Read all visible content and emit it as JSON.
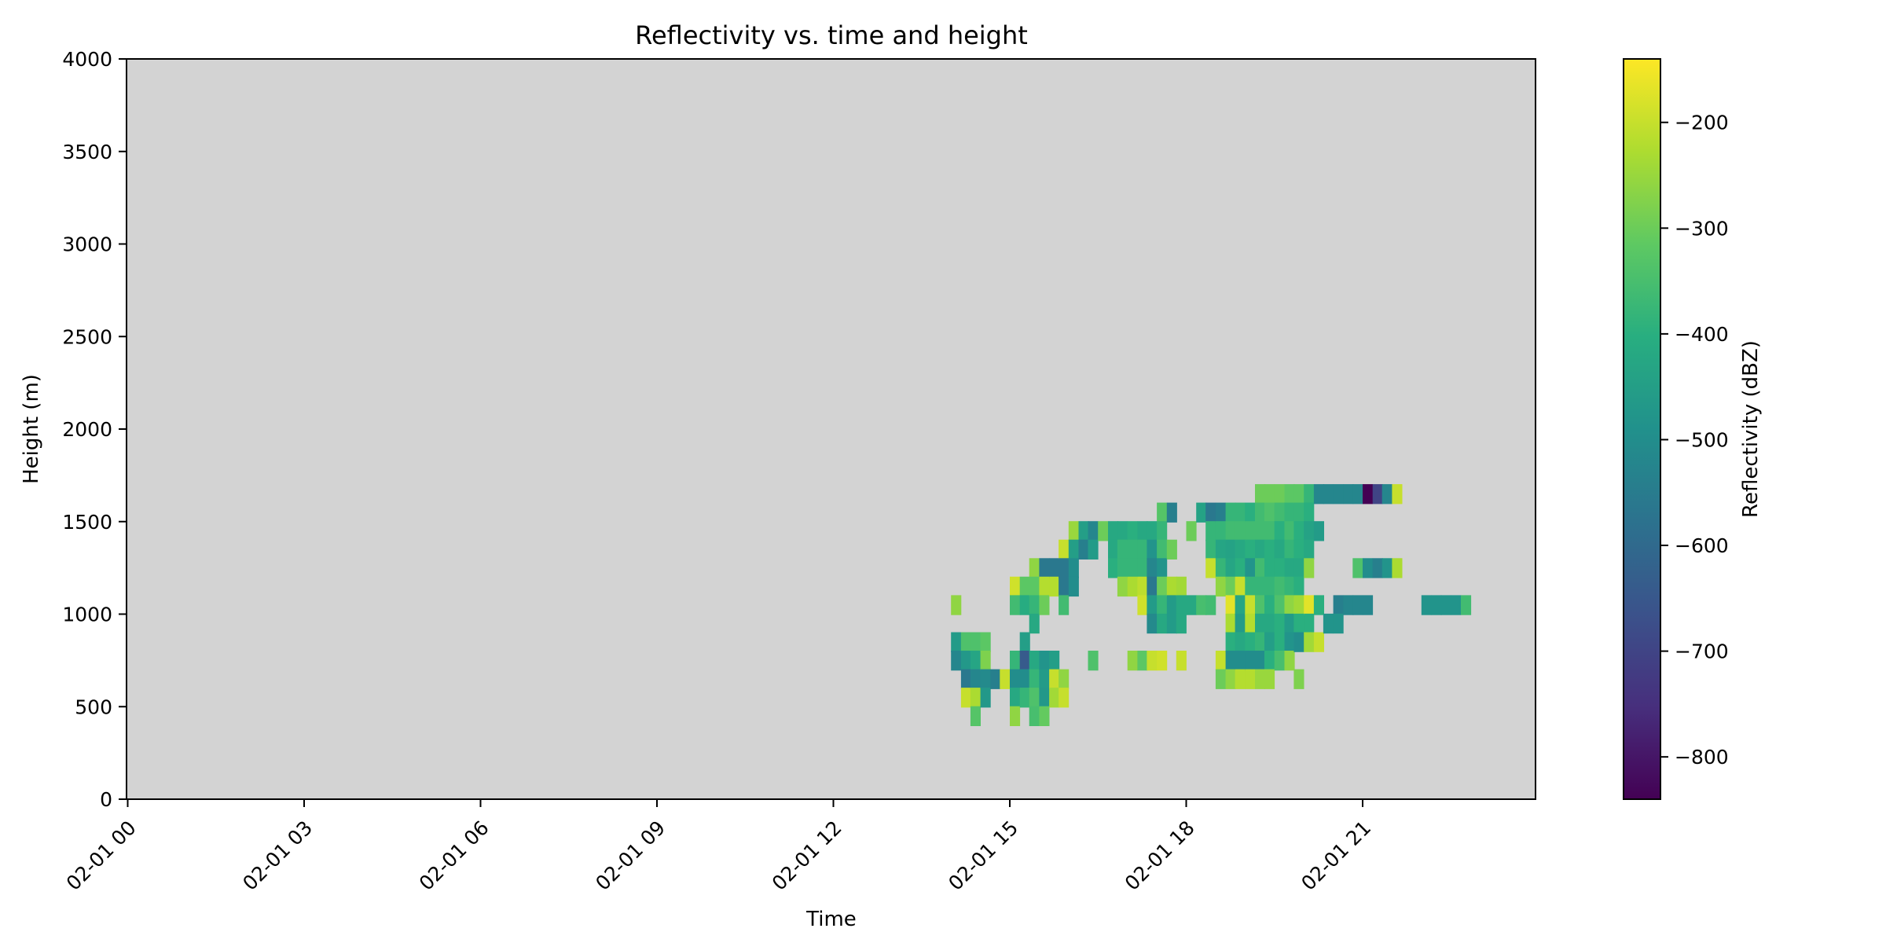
{
  "chart_data": {
    "type": "heatmap",
    "title": "Reflectivity vs. time and height",
    "xlabel": "Time",
    "ylabel": "Height (m)",
    "colorbar_label": "Reflectivity (dBZ)",
    "colormap": "viridis",
    "background_color": "#d3d3d3",
    "x_range": [
      "02-01 00",
      "02-01 23"
    ],
    "ylim": [
      0,
      4000
    ],
    "clim": [
      -840,
      -140
    ],
    "x_ticks": [
      "02-01 00",
      "02-01 03",
      "02-01 06",
      "02-01 09",
      "02-01 12",
      "02-01 15",
      "02-01 18",
      "02-01 21"
    ],
    "x_tick_hours": [
      0,
      3,
      6,
      9,
      12,
      15,
      18,
      21
    ],
    "y_ticks": [
      "0",
      "500",
      "1000",
      "1500",
      "2000",
      "2500",
      "3000",
      "3500",
      "4000"
    ],
    "y_tick_values": [
      0,
      500,
      1000,
      1500,
      2000,
      2500,
      3000,
      3500,
      4000
    ],
    "colorbar_ticks": [
      "−200",
      "−300",
      "−400",
      "−500",
      "−600",
      "−700",
      "−800"
    ],
    "colorbar_tick_values": [
      -200,
      -300,
      -400,
      -500,
      -600,
      -700,
      -800
    ],
    "cell_hours": 0.1667,
    "cell_height_m": 105,
    "cells": [
      [
        14.0,
        1050,
        -260
      ],
      [
        14.0,
        850,
        -460
      ],
      [
        14.0,
        750,
        -520
      ],
      [
        14.17,
        850,
        -340
      ],
      [
        14.17,
        750,
        -470
      ],
      [
        14.17,
        650,
        -560
      ],
      [
        14.17,
        550,
        -200
      ],
      [
        14.33,
        850,
        -340
      ],
      [
        14.33,
        750,
        -430
      ],
      [
        14.33,
        650,
        -520
      ],
      [
        14.33,
        550,
        -230
      ],
      [
        14.33,
        450,
        -330
      ],
      [
        14.5,
        850,
        -320
      ],
      [
        14.5,
        750,
        -280
      ],
      [
        14.5,
        650,
        -510
      ],
      [
        14.5,
        550,
        -470
      ],
      [
        14.67,
        650,
        -540
      ],
      [
        14.83,
        650,
        -200
      ],
      [
        15.0,
        1150,
        -190
      ],
      [
        15.0,
        1050,
        -360
      ],
      [
        15.0,
        750,
        -380
      ],
      [
        15.0,
        650,
        -500
      ],
      [
        15.0,
        550,
        -420
      ],
      [
        15.0,
        450,
        -260
      ],
      [
        15.17,
        1150,
        -320
      ],
      [
        15.17,
        1050,
        -410
      ],
      [
        15.17,
        850,
        -450
      ],
      [
        15.17,
        750,
        -640
      ],
      [
        15.17,
        650,
        -500
      ],
      [
        15.17,
        550,
        -380
      ],
      [
        15.33,
        1250,
        -260
      ],
      [
        15.33,
        1150,
        -320
      ],
      [
        15.33,
        1050,
        -380
      ],
      [
        15.33,
        950,
        -420
      ],
      [
        15.33,
        750,
        -420
      ],
      [
        15.33,
        650,
        -380
      ],
      [
        15.33,
        550,
        -340
      ],
      [
        15.33,
        450,
        -350
      ],
      [
        15.5,
        1250,
        -560
      ],
      [
        15.5,
        1150,
        -220
      ],
      [
        15.5,
        1050,
        -300
      ],
      [
        15.5,
        750,
        -480
      ],
      [
        15.5,
        650,
        -460
      ],
      [
        15.5,
        550,
        -470
      ],
      [
        15.5,
        450,
        -310
      ],
      [
        15.67,
        1250,
        -560
      ],
      [
        15.67,
        1150,
        -220
      ],
      [
        15.67,
        750,
        -450
      ],
      [
        15.67,
        650,
        -200
      ],
      [
        15.67,
        550,
        -240
      ],
      [
        15.83,
        1350,
        -200
      ],
      [
        15.83,
        1250,
        -560
      ],
      [
        15.83,
        1150,
        -560
      ],
      [
        15.83,
        1050,
        -360
      ],
      [
        15.83,
        650,
        -260
      ],
      [
        15.83,
        550,
        -200
      ],
      [
        16.0,
        1450,
        -250
      ],
      [
        16.0,
        1350,
        -450
      ],
      [
        16.0,
        1250,
        -500
      ],
      [
        16.0,
        1150,
        -500
      ],
      [
        16.17,
        1450,
        -450
      ],
      [
        16.17,
        1350,
        -540
      ],
      [
        16.33,
        1450,
        -520
      ],
      [
        16.33,
        1350,
        -460
      ],
      [
        16.33,
        750,
        -340
      ],
      [
        16.5,
        1450,
        -300
      ],
      [
        16.67,
        1450,
        -420
      ],
      [
        16.67,
        1350,
        -420
      ],
      [
        16.67,
        1250,
        -400
      ],
      [
        16.83,
        1450,
        -420
      ],
      [
        16.83,
        1350,
        -380
      ],
      [
        16.83,
        1250,
        -380
      ],
      [
        16.83,
        1150,
        -260
      ],
      [
        17.0,
        1450,
        -400
      ],
      [
        17.0,
        1350,
        -380
      ],
      [
        17.0,
        1250,
        -380
      ],
      [
        17.0,
        1150,
        -230
      ],
      [
        17.0,
        750,
        -260
      ],
      [
        17.17,
        1450,
        -420
      ],
      [
        17.17,
        1350,
        -380
      ],
      [
        17.17,
        1250,
        -380
      ],
      [
        17.17,
        1150,
        -210
      ],
      [
        17.17,
        1050,
        -190
      ],
      [
        17.17,
        750,
        -320
      ],
      [
        17.33,
        1450,
        -420
      ],
      [
        17.33,
        1350,
        -480
      ],
      [
        17.33,
        1250,
        -520
      ],
      [
        17.33,
        1150,
        -560
      ],
      [
        17.33,
        1050,
        -460
      ],
      [
        17.33,
        950,
        -510
      ],
      [
        17.33,
        750,
        -200
      ],
      [
        17.5,
        1550,
        -330
      ],
      [
        17.5,
        1450,
        -380
      ],
      [
        17.5,
        1350,
        -360
      ],
      [
        17.5,
        1250,
        -480
      ],
      [
        17.5,
        1150,
        -300
      ],
      [
        17.5,
        1050,
        -380
      ],
      [
        17.5,
        950,
        -420
      ],
      [
        17.5,
        750,
        -190
      ],
      [
        17.67,
        1550,
        -540
      ],
      [
        17.67,
        1350,
        -300
      ],
      [
        17.67,
        1150,
        -230
      ],
      [
        17.67,
        1050,
        -460
      ],
      [
        17.67,
        950,
        -460
      ],
      [
        17.83,
        1150,
        -240
      ],
      [
        17.83,
        1050,
        -420
      ],
      [
        17.83,
        950,
        -420
      ],
      [
        17.83,
        750,
        -200
      ],
      [
        18.0,
        1450,
        -300
      ],
      [
        18.0,
        1050,
        -420
      ],
      [
        18.17,
        1550,
        -440
      ],
      [
        18.17,
        1050,
        -350
      ],
      [
        18.33,
        1550,
        -560
      ],
      [
        18.33,
        1450,
        -380
      ],
      [
        18.33,
        1350,
        -380
      ],
      [
        18.33,
        1250,
        -200
      ],
      [
        18.33,
        1050,
        -360
      ],
      [
        18.5,
        1550,
        -540
      ],
      [
        18.5,
        1450,
        -380
      ],
      [
        18.5,
        1350,
        -430
      ],
      [
        18.5,
        1250,
        -380
      ],
      [
        18.5,
        1150,
        -260
      ],
      [
        18.5,
        750,
        -200
      ],
      [
        18.5,
        650,
        -300
      ],
      [
        18.67,
        1550,
        -380
      ],
      [
        18.67,
        1450,
        -360
      ],
      [
        18.67,
        1350,
        -440
      ],
      [
        18.67,
        1250,
        -430
      ],
      [
        18.67,
        1150,
        -300
      ],
      [
        18.67,
        1050,
        -170
      ],
      [
        18.67,
        950,
        -230
      ],
      [
        18.67,
        850,
        -400
      ],
      [
        18.67,
        750,
        -500
      ],
      [
        18.67,
        650,
        -260
      ],
      [
        18.83,
        1550,
        -380
      ],
      [
        18.83,
        1450,
        -360
      ],
      [
        18.83,
        1350,
        -420
      ],
      [
        18.83,
        1250,
        -400
      ],
      [
        18.83,
        1150,
        -200
      ],
      [
        18.83,
        1050,
        -430
      ],
      [
        18.83,
        950,
        -460
      ],
      [
        18.83,
        850,
        -420
      ],
      [
        18.83,
        750,
        -500
      ],
      [
        18.83,
        650,
        -220
      ],
      [
        19.0,
        1550,
        -400
      ],
      [
        19.0,
        1450,
        -360
      ],
      [
        19.0,
        1350,
        -400
      ],
      [
        19.0,
        1250,
        -480
      ],
      [
        19.0,
        1150,
        -380
      ],
      [
        19.0,
        1050,
        -200
      ],
      [
        19.0,
        950,
        -220
      ],
      [
        19.0,
        850,
        -400
      ],
      [
        19.0,
        750,
        -500
      ],
      [
        19.0,
        650,
        -220
      ],
      [
        19.17,
        1650,
        -300
      ],
      [
        19.17,
        1550,
        -360
      ],
      [
        19.17,
        1450,
        -360
      ],
      [
        19.17,
        1350,
        -420
      ],
      [
        19.17,
        1250,
        -360
      ],
      [
        19.17,
        1150,
        -380
      ],
      [
        19.17,
        1050,
        -340
      ],
      [
        19.17,
        950,
        -420
      ],
      [
        19.17,
        850,
        -380
      ],
      [
        19.17,
        750,
        -500
      ],
      [
        19.17,
        650,
        -250
      ],
      [
        19.33,
        1650,
        -300
      ],
      [
        19.33,
        1550,
        -340
      ],
      [
        19.33,
        1450,
        -360
      ],
      [
        19.33,
        1350,
        -400
      ],
      [
        19.33,
        1250,
        -400
      ],
      [
        19.33,
        1150,
        -380
      ],
      [
        19.33,
        1050,
        -400
      ],
      [
        19.33,
        950,
        -420
      ],
      [
        19.33,
        850,
        -450
      ],
      [
        19.33,
        750,
        -400
      ],
      [
        19.33,
        650,
        -250
      ],
      [
        19.5,
        1650,
        -300
      ],
      [
        19.5,
        1550,
        -360
      ],
      [
        19.5,
        1450,
        -400
      ],
      [
        19.5,
        1350,
        -420
      ],
      [
        19.5,
        1250,
        -400
      ],
      [
        19.5,
        1150,
        -360
      ],
      [
        19.5,
        1050,
        -340
      ],
      [
        19.5,
        950,
        -400
      ],
      [
        19.5,
        850,
        -400
      ],
      [
        19.5,
        750,
        -350
      ],
      [
        19.67,
        1650,
        -320
      ],
      [
        19.67,
        1550,
        -380
      ],
      [
        19.67,
        1450,
        -360
      ],
      [
        19.67,
        1350,
        -380
      ],
      [
        19.67,
        1250,
        -420
      ],
      [
        19.67,
        1150,
        -380
      ],
      [
        19.67,
        1050,
        -260
      ],
      [
        19.67,
        950,
        -460
      ],
      [
        19.67,
        850,
        -480
      ],
      [
        19.67,
        750,
        -260
      ],
      [
        19.83,
        1650,
        -320
      ],
      [
        19.83,
        1550,
        -380
      ],
      [
        19.83,
        1450,
        -400
      ],
      [
        19.83,
        1350,
        -400
      ],
      [
        19.83,
        1250,
        -420
      ],
      [
        19.83,
        1150,
        -400
      ],
      [
        19.83,
        1050,
        -240
      ],
      [
        19.83,
        950,
        -400
      ],
      [
        19.83,
        850,
        -500
      ],
      [
        19.83,
        650,
        -280
      ],
      [
        20.0,
        1650,
        -380
      ],
      [
        20.0,
        1550,
        -400
      ],
      [
        20.0,
        1450,
        -440
      ],
      [
        20.0,
        1350,
        -420
      ],
      [
        20.0,
        1250,
        -260
      ],
      [
        20.0,
        1050,
        -170
      ],
      [
        20.0,
        950,
        -400
      ],
      [
        20.0,
        850,
        -240
      ],
      [
        20.17,
        1650,
        -520
      ],
      [
        20.17,
        1450,
        -460
      ],
      [
        20.17,
        1050,
        -400
      ],
      [
        20.17,
        850,
        -200
      ],
      [
        20.33,
        1650,
        -520
      ],
      [
        20.33,
        950,
        -480
      ],
      [
        20.5,
        1650,
        -520
      ],
      [
        20.5,
        1050,
        -540
      ],
      [
        20.5,
        950,
        -480
      ],
      [
        20.67,
        1650,
        -520
      ],
      [
        20.67,
        1050,
        -520
      ],
      [
        20.83,
        1650,
        -520
      ],
      [
        20.83,
        1250,
        -340
      ],
      [
        20.83,
        1050,
        -520
      ],
      [
        21.0,
        1650,
        -840
      ],
      [
        21.0,
        1250,
        -500
      ],
      [
        21.0,
        1050,
        -520
      ],
      [
        21.17,
        1650,
        -700
      ],
      [
        21.17,
        1250,
        -540
      ],
      [
        21.33,
        1650,
        -520
      ],
      [
        21.33,
        1250,
        -480
      ],
      [
        21.5,
        1650,
        -200
      ],
      [
        21.5,
        1250,
        -230
      ],
      [
        22.0,
        1050,
        -480
      ],
      [
        22.17,
        1050,
        -480
      ],
      [
        22.33,
        1050,
        -480
      ],
      [
        22.5,
        1050,
        -480
      ],
      [
        22.67,
        1050,
        -360
      ]
    ]
  }
}
